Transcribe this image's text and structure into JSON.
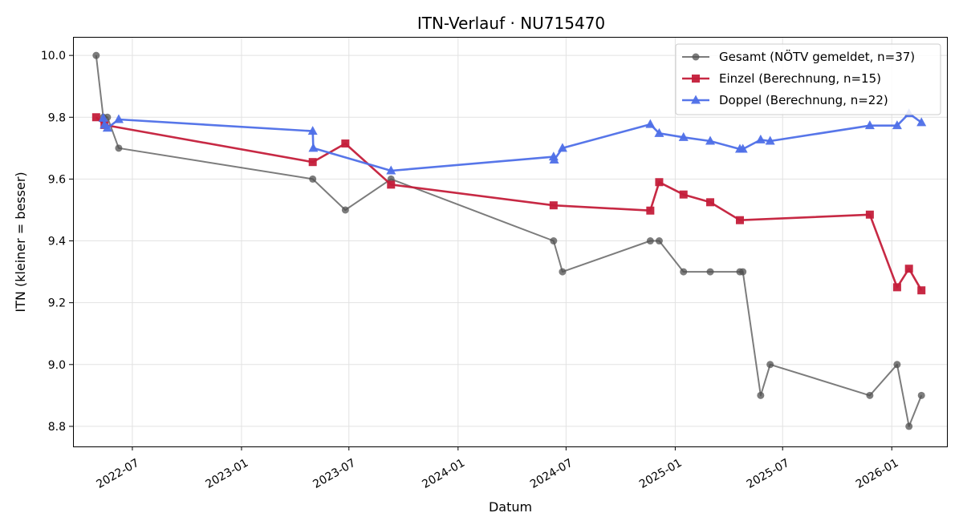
{
  "chart_data": {
    "type": "line",
    "title": "ITN-Verlauf · NU715470",
    "xlabel": "Datum",
    "ylabel": "ITN  (kleiner = besser)",
    "x_ticks": [
      "2022-07",
      "2023-01",
      "2023-07",
      "2024-01",
      "2024-07",
      "2025-01",
      "2025-07",
      "2026-01"
    ],
    "y_ticks": [
      "8.8",
      "9.0",
      "9.2",
      "9.4",
      "9.6",
      "9.8",
      "10.0"
    ],
    "xlim": [
      "2022-03-23",
      "2026-04-04"
    ],
    "ylim": [
      8.735,
      10.06
    ],
    "grid": true,
    "legend_position": "top-right",
    "series": [
      {
        "name": "Gesamt (NÖTV gemeldet, n=37)",
        "color": "#505050",
        "marker": "circle",
        "points": [
          {
            "x": "2022-05-01",
            "y": 10.0
          },
          {
            "x": "2022-05-13",
            "y": 9.8
          },
          {
            "x": "2022-05-20",
            "y": 9.8
          },
          {
            "x": "2022-06-08",
            "y": 9.7
          },
          {
            "x": "2023-05-01",
            "y": 9.6
          },
          {
            "x": "2023-06-25",
            "y": 9.5
          },
          {
            "x": "2023-09-10",
            "y": 9.6
          },
          {
            "x": "2024-06-10",
            "y": 9.4
          },
          {
            "x": "2024-06-25",
            "y": 9.3
          },
          {
            "x": "2024-11-20",
            "y": 9.4
          },
          {
            "x": "2024-12-05",
            "y": 9.4
          },
          {
            "x": "2025-01-15",
            "y": 9.3
          },
          {
            "x": "2025-03-01",
            "y": 9.3
          },
          {
            "x": "2025-04-20",
            "y": 9.3
          },
          {
            "x": "2025-04-25",
            "y": 9.3
          },
          {
            "x": "2025-05-25",
            "y": 8.9
          },
          {
            "x": "2025-06-10",
            "y": 9.0
          },
          {
            "x": "2025-11-25",
            "y": 8.9
          },
          {
            "x": "2026-01-10",
            "y": 9.0
          },
          {
            "x": "2026-01-30",
            "y": 8.8
          },
          {
            "x": "2026-02-20",
            "y": 8.9
          }
        ]
      },
      {
        "name": "Einzel (Berechnung, n=15)",
        "color": "#c41e3a",
        "marker": "square",
        "points": [
          {
            "x": "2022-05-01",
            "y": 9.8
          },
          {
            "x": "2022-05-15",
            "y": 9.775
          },
          {
            "x": "2023-05-01",
            "y": 9.655
          },
          {
            "x": "2023-06-25",
            "y": 9.715
          },
          {
            "x": "2023-09-10",
            "y": 9.582
          },
          {
            "x": "2024-06-10",
            "y": 9.515
          },
          {
            "x": "2024-11-20",
            "y": 9.498
          },
          {
            "x": "2024-12-05",
            "y": 9.59
          },
          {
            "x": "2025-01-15",
            "y": 9.55
          },
          {
            "x": "2025-03-01",
            "y": 9.525
          },
          {
            "x": "2025-04-20",
            "y": 9.467
          },
          {
            "x": "2025-11-25",
            "y": 9.485
          },
          {
            "x": "2026-01-10",
            "y": 9.25
          },
          {
            "x": "2026-01-30",
            "y": 9.31
          },
          {
            "x": "2026-02-20",
            "y": 9.24
          }
        ]
      },
      {
        "name": "Doppel (Berechnung, n=22)",
        "color": "#4e6fe8",
        "marker": "triangle",
        "points": [
          {
            "x": "2022-05-13",
            "y": 9.797
          },
          {
            "x": "2022-05-15",
            "y": 9.775
          },
          {
            "x": "2022-05-20",
            "y": 9.765
          },
          {
            "x": "2022-06-08",
            "y": 9.793
          },
          {
            "x": "2023-05-01",
            "y": 9.755
          },
          {
            "x": "2023-05-02",
            "y": 9.7
          },
          {
            "x": "2023-09-10",
            "y": 9.627
          },
          {
            "x": "2024-06-10",
            "y": 9.672
          },
          {
            "x": "2024-06-11",
            "y": 9.662
          },
          {
            "x": "2024-06-25",
            "y": 9.7
          },
          {
            "x": "2024-11-20",
            "y": 9.777
          },
          {
            "x": "2024-12-05",
            "y": 9.748
          },
          {
            "x": "2025-01-15",
            "y": 9.735
          },
          {
            "x": "2025-03-01",
            "y": 9.723
          },
          {
            "x": "2025-04-20",
            "y": 9.697
          },
          {
            "x": "2025-04-25",
            "y": 9.697
          },
          {
            "x": "2025-05-25",
            "y": 9.727
          },
          {
            "x": "2025-06-10",
            "y": 9.723
          },
          {
            "x": "2025-11-25",
            "y": 9.773
          },
          {
            "x": "2026-01-10",
            "y": 9.773
          },
          {
            "x": "2026-01-30",
            "y": 9.812
          },
          {
            "x": "2026-02-20",
            "y": 9.783
          }
        ]
      }
    ]
  }
}
